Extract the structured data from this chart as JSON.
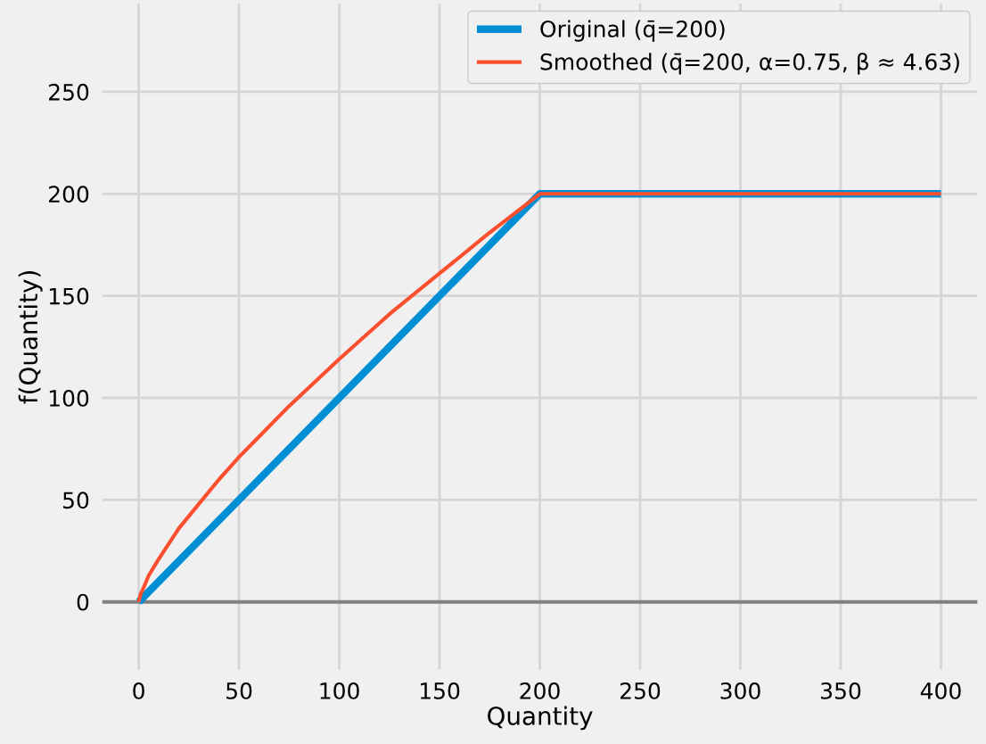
{
  "chart_data": {
    "type": "line",
    "xlabel": "Quantity",
    "ylabel": "f(Quantity)",
    "xlim": [
      -20,
      420
    ],
    "xticks": [
      0,
      50,
      100,
      150,
      200,
      250,
      300,
      350,
      400
    ],
    "ylim": [
      -35,
      295
    ],
    "yticks": [
      0,
      50,
      100,
      150,
      200,
      250
    ],
    "grid": true,
    "legend": "top right",
    "marker": "none",
    "line_style": "solid",
    "ref_lines": [
      {
        "axis": "y",
        "value": 0,
        "color": "#808080"
      }
    ],
    "series": [
      {
        "name": "Original (q̄=200)",
        "color": "#008fd5",
        "x": [
          0,
          200,
          400
        ],
        "values": [
          0,
          200,
          200
        ]
      },
      {
        "name": "Smoothed (q̄=200, α=0.75, β ≈ 4.63)",
        "color": "#fc4f30",
        "x": [
          0,
          1,
          2,
          5,
          10,
          20,
          30,
          40,
          50,
          60,
          75,
          100,
          125,
          150,
          175,
          200,
          400
        ],
        "values": [
          0,
          4,
          6,
          13,
          21,
          36,
          48,
          60,
          71,
          81,
          96,
          119,
          141,
          161,
          181,
          200,
          200
        ]
      }
    ]
  }
}
